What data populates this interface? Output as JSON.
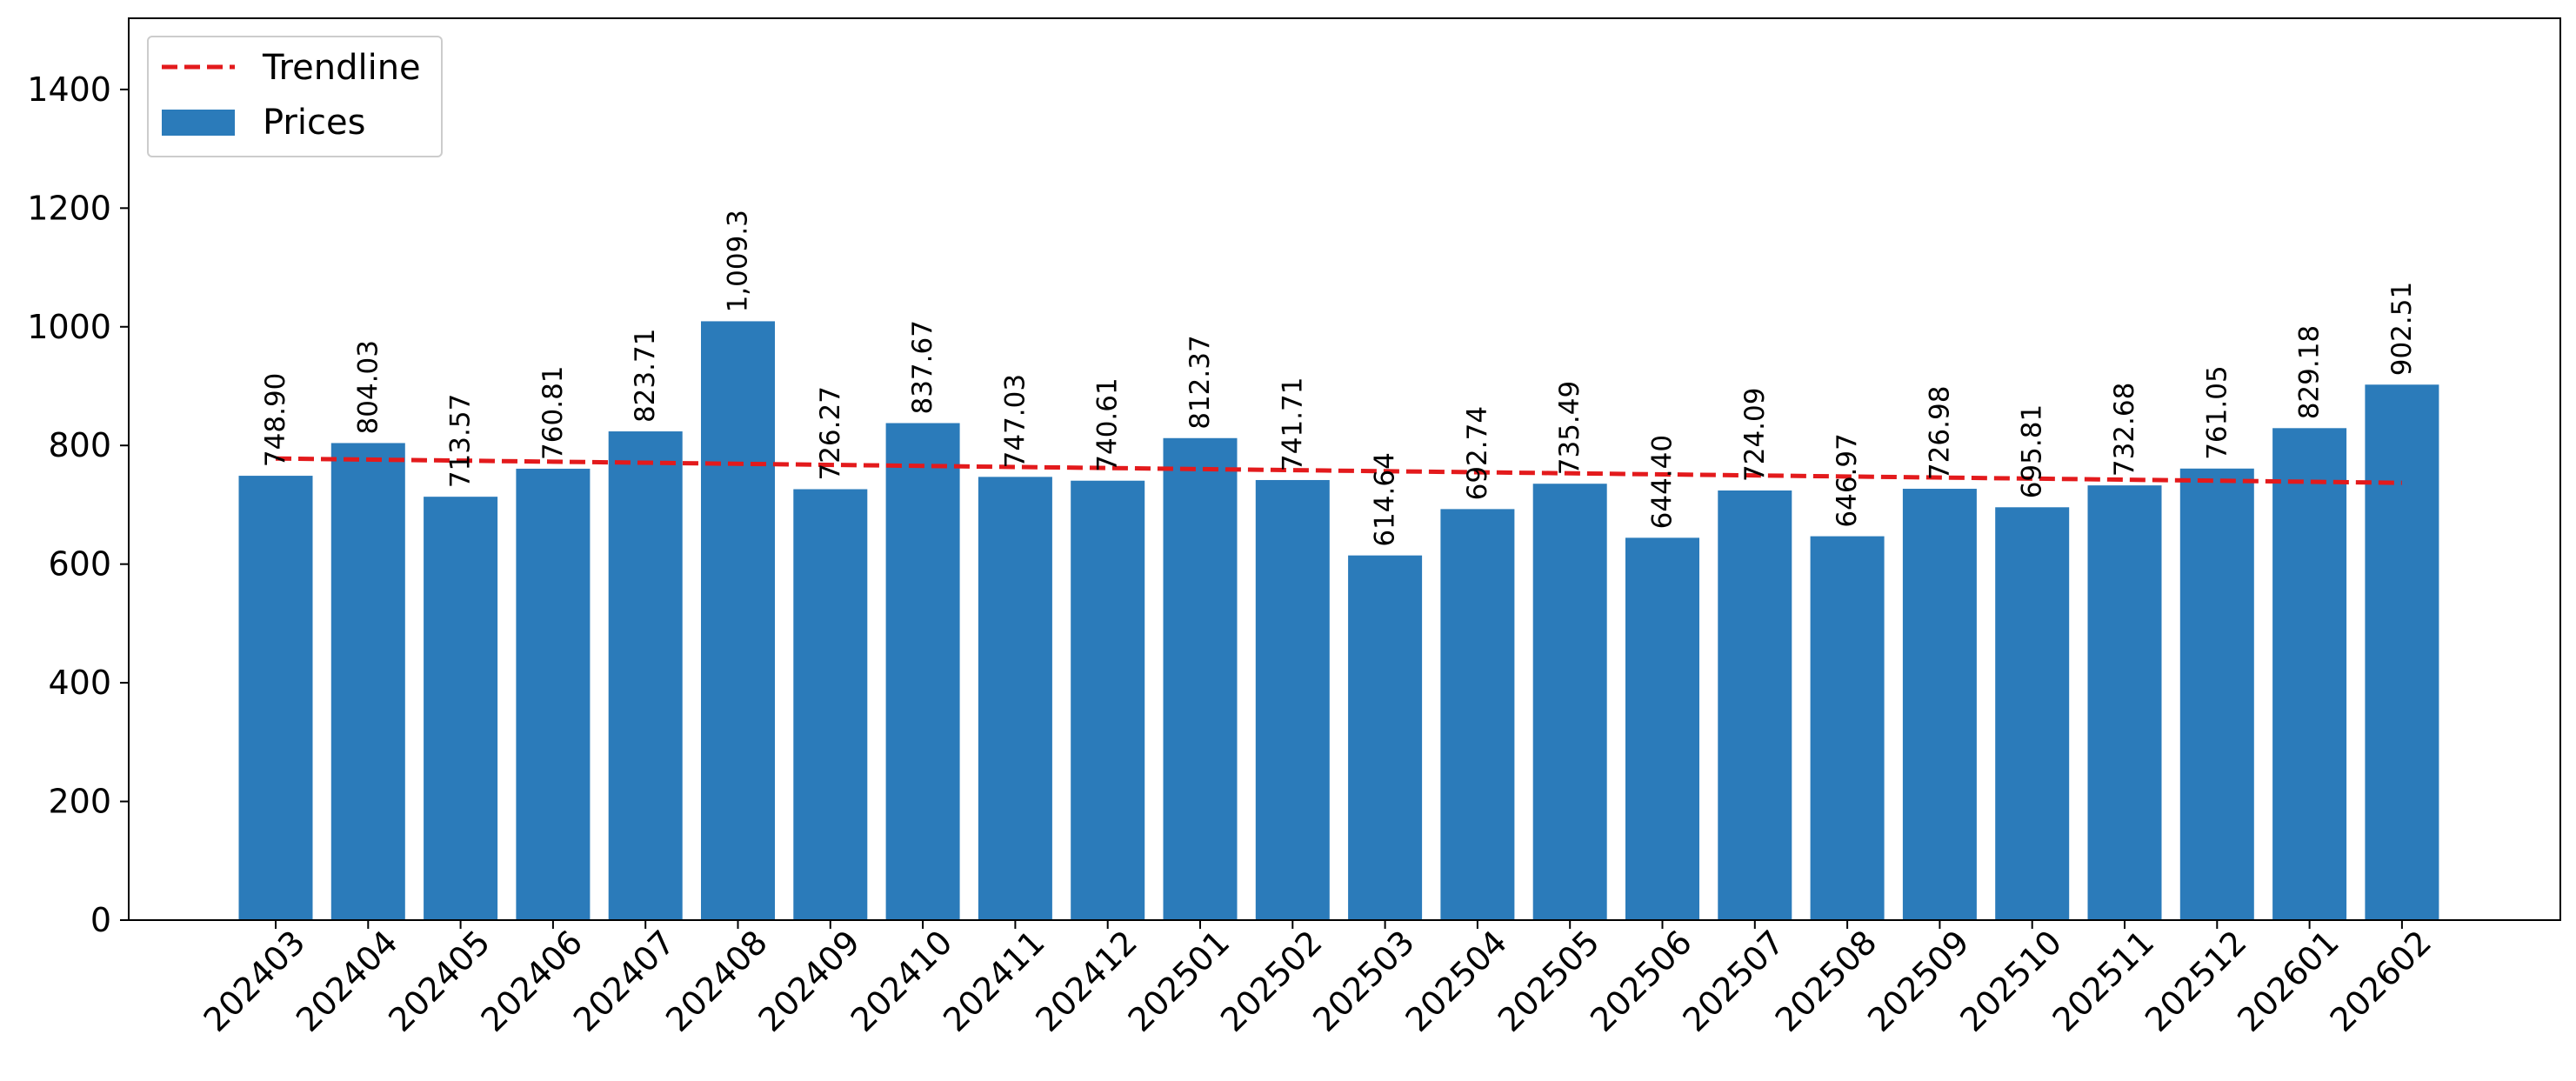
{
  "chart_data": {
    "type": "bar",
    "title": "",
    "xlabel": "",
    "ylabel": "",
    "ylim": [
      0,
      1520
    ],
    "yticks": [
      0,
      200,
      400,
      600,
      800,
      1000,
      1200,
      1400
    ],
    "grid": false,
    "legend_position": "top-left",
    "categories": [
      "202403",
      "202404",
      "202405",
      "202406",
      "202407",
      "202408",
      "202409",
      "202410",
      "202411",
      "202412",
      "202501",
      "202502",
      "202503",
      "202504",
      "202505",
      "202506",
      "202507",
      "202508",
      "202509",
      "202510",
      "202511",
      "202512",
      "202601",
      "202602"
    ],
    "series": [
      {
        "name": "Prices",
        "color": "#2b7bba",
        "values": [
          748.9,
          804.03,
          713.57,
          760.81,
          823.71,
          1009.3,
          726.27,
          837.67,
          747.03,
          740.61,
          812.37,
          741.71,
          614.64,
          692.74,
          735.49,
          644.4,
          724.09,
          646.97,
          726.98,
          695.81,
          732.68,
          761.05,
          829.18,
          902.51
        ],
        "labels": [
          "748.90",
          "804.03",
          "713.57",
          "760.81",
          "823.71",
          "1,009.3",
          "726.27",
          "837.67",
          "747.03",
          "740.61",
          "812.37",
          "741.71",
          "614.64",
          "692.74",
          "735.49",
          "644.40",
          "724.09",
          "646.97",
          "726.98",
          "695.81",
          "732.68",
          "761.05",
          "829.18",
          "902.51"
        ]
      }
    ],
    "trendline": {
      "name": "Trendline",
      "color": "#e31a1c",
      "style": "dashed",
      "start": 778,
      "end": 737
    }
  }
}
